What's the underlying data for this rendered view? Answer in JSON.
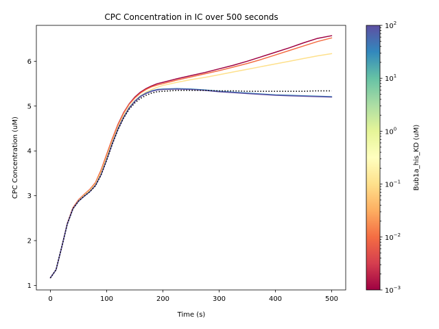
{
  "chart_data": {
    "type": "line",
    "title": "CPC Concentration in IC over 500 seconds",
    "xlabel": "Time (s)",
    "ylabel": "CPC Concentration (uM)",
    "xlim": [
      -25,
      525
    ],
    "ylim": [
      0.9,
      6.8
    ],
    "x_ticks": [
      0,
      100,
      200,
      300,
      400,
      500
    ],
    "y_ticks": [
      1,
      2,
      3,
      4,
      5,
      6
    ],
    "x_tick_labels": [
      "0",
      "100",
      "200",
      "300",
      "400",
      "500"
    ],
    "y_tick_labels": [
      "1",
      "2",
      "3",
      "4",
      "5",
      "6"
    ],
    "grid": false,
    "series": [
      {
        "color": "#9e0142",
        "style": "solid",
        "x": [
          0,
          10,
          20,
          30,
          40,
          50,
          60,
          70,
          80,
          90,
          100,
          110,
          120,
          130,
          140,
          150,
          160,
          170,
          180,
          190,
          200,
          225,
          250,
          275,
          300,
          325,
          350,
          375,
          400,
          425,
          450,
          475,
          500
        ],
        "y": [
          1.17,
          1.35,
          1.85,
          2.38,
          2.73,
          2.91,
          3.03,
          3.14,
          3.29,
          3.57,
          3.92,
          4.27,
          4.59,
          4.85,
          5.05,
          5.2,
          5.31,
          5.39,
          5.45,
          5.5,
          5.53,
          5.61,
          5.68,
          5.75,
          5.83,
          5.91,
          6.0,
          6.1,
          6.2,
          6.3,
          6.41,
          6.51,
          6.57
        ]
      },
      {
        "color": "#f46d43",
        "style": "solid",
        "x": [
          0,
          10,
          20,
          30,
          40,
          50,
          60,
          70,
          80,
          90,
          100,
          110,
          120,
          130,
          140,
          150,
          160,
          170,
          180,
          190,
          200,
          225,
          250,
          275,
          300,
          325,
          350,
          375,
          400,
          425,
          450,
          475,
          500
        ],
        "y": [
          1.17,
          1.35,
          1.85,
          2.38,
          2.73,
          2.91,
          3.03,
          3.14,
          3.29,
          3.57,
          3.92,
          4.27,
          4.58,
          4.84,
          5.04,
          5.18,
          5.29,
          5.37,
          5.43,
          5.47,
          5.5,
          5.58,
          5.65,
          5.72,
          5.79,
          5.87,
          5.95,
          6.04,
          6.14,
          6.24,
          6.34,
          6.44,
          6.52
        ]
      },
      {
        "color": "#fee08b",
        "style": "solid",
        "x": [
          0,
          10,
          20,
          30,
          40,
          50,
          60,
          70,
          80,
          90,
          100,
          110,
          120,
          130,
          140,
          150,
          160,
          170,
          180,
          190,
          200,
          225,
          250,
          275,
          300,
          325,
          350,
          375,
          400,
          425,
          450,
          475,
          500
        ],
        "y": [
          1.17,
          1.35,
          1.85,
          2.37,
          2.71,
          2.89,
          3.01,
          3.12,
          3.26,
          3.52,
          3.86,
          4.21,
          4.52,
          4.78,
          4.98,
          5.12,
          5.23,
          5.31,
          5.37,
          5.42,
          5.46,
          5.53,
          5.59,
          5.64,
          5.7,
          5.76,
          5.82,
          5.88,
          5.94,
          6.0,
          6.06,
          6.12,
          6.17
        ]
      },
      {
        "color": "#3288bd",
        "style": "solid",
        "x": [
          0,
          10,
          20,
          30,
          40,
          50,
          60,
          70,
          80,
          90,
          100,
          110,
          120,
          130,
          140,
          150,
          160,
          170,
          180,
          190,
          200,
          225,
          250,
          275,
          300,
          325,
          350,
          375,
          400,
          425,
          450,
          475,
          500
        ],
        "y": [
          1.17,
          1.35,
          1.85,
          2.37,
          2.71,
          2.88,
          2.99,
          3.09,
          3.23,
          3.47,
          3.81,
          4.17,
          4.49,
          4.75,
          4.96,
          5.11,
          5.22,
          5.29,
          5.34,
          5.37,
          5.38,
          5.39,
          5.38,
          5.36,
          5.33,
          5.31,
          5.29,
          5.27,
          5.25,
          5.24,
          5.23,
          5.22,
          5.21
        ]
      },
      {
        "color": "#5e4fa2",
        "style": "solid",
        "x": [
          0,
          10,
          20,
          30,
          40,
          50,
          60,
          70,
          80,
          90,
          100,
          110,
          120,
          130,
          140,
          150,
          160,
          170,
          180,
          190,
          200,
          225,
          250,
          275,
          300,
          325,
          350,
          375,
          400,
          425,
          450,
          475,
          500
        ],
        "y": [
          1.17,
          1.35,
          1.85,
          2.37,
          2.71,
          2.88,
          2.99,
          3.09,
          3.23,
          3.47,
          3.8,
          4.16,
          4.48,
          4.74,
          4.95,
          5.1,
          5.21,
          5.28,
          5.33,
          5.36,
          5.37,
          5.38,
          5.37,
          5.35,
          5.32,
          5.3,
          5.28,
          5.26,
          5.24,
          5.23,
          5.22,
          5.21,
          5.2
        ]
      },
      {
        "color": "#000000",
        "style": "dotted",
        "x": [
          0,
          10,
          20,
          30,
          40,
          50,
          60,
          70,
          80,
          90,
          100,
          110,
          120,
          130,
          140,
          150,
          160,
          170,
          180,
          190,
          200,
          225,
          250,
          275,
          300,
          325,
          350,
          375,
          400,
          425,
          450,
          475,
          500
        ],
        "y": [
          1.17,
          1.35,
          1.85,
          2.37,
          2.71,
          2.88,
          2.99,
          3.09,
          3.22,
          3.46,
          3.79,
          4.15,
          4.47,
          4.73,
          4.93,
          5.07,
          5.17,
          5.24,
          5.29,
          5.32,
          5.33,
          5.35,
          5.35,
          5.35,
          5.34,
          5.34,
          5.33,
          5.33,
          5.33,
          5.33,
          5.33,
          5.34,
          5.34
        ]
      }
    ],
    "colorbar": {
      "label": "Bub1a_his_KD (uM)",
      "scale": "log",
      "range": [
        0.001,
        100
      ],
      "ticks": [
        {
          "value": 0.001,
          "base": "10",
          "exp": "−3"
        },
        {
          "value": 0.01,
          "base": "10",
          "exp": "−2"
        },
        {
          "value": 0.1,
          "base": "10",
          "exp": "−1"
        },
        {
          "value": 1,
          "base": "10",
          "exp": "0"
        },
        {
          "value": 10,
          "base": "10",
          "exp": "1"
        },
        {
          "value": 100,
          "base": "10",
          "exp": "2"
        }
      ],
      "colormap": [
        "#9e0142",
        "#d53e4f",
        "#f46d43",
        "#fdae61",
        "#fee08b",
        "#ffffbf",
        "#e6f598",
        "#abdda4",
        "#66c2a5",
        "#3288bd",
        "#5e4fa2"
      ]
    }
  }
}
